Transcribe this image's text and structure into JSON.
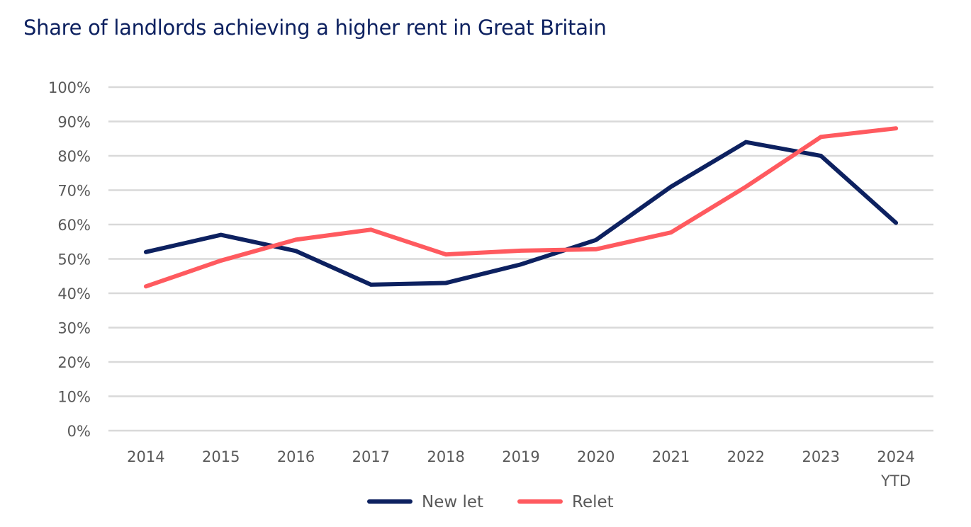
{
  "chart_data": {
    "type": "line",
    "title": "Share of landlords achieving a higher rent in Great Britain",
    "xlabel": "",
    "ylabel": "",
    "categories": [
      "2014",
      "2015",
      "2016",
      "2017",
      "2018",
      "2019",
      "2020",
      "2021",
      "2022",
      "2023",
      "2024 YTD"
    ],
    "category_lines": [
      [
        "2014"
      ],
      [
        "2015"
      ],
      [
        "2016"
      ],
      [
        "2017"
      ],
      [
        "2018"
      ],
      [
        "2019"
      ],
      [
        "2020"
      ],
      [
        "2021"
      ],
      [
        "2022"
      ],
      [
        "2023"
      ],
      [
        "2024",
        "YTD"
      ]
    ],
    "ylim": [
      0,
      100
    ],
    "yticks": [
      0,
      10,
      20,
      30,
      40,
      50,
      60,
      70,
      80,
      90,
      100
    ],
    "ytick_labels": [
      "0%",
      "10%",
      "20%",
      "30%",
      "40%",
      "50%",
      "60%",
      "70%",
      "80%",
      "90%",
      "100%"
    ],
    "grid": true,
    "legend_position": "bottom",
    "series": [
      {
        "name": "New let",
        "color": "#0d2160",
        "values": [
          52,
          57,
          52.3,
          42.5,
          43,
          48.4,
          55.5,
          71,
          84,
          80,
          60.5
        ]
      },
      {
        "name": "Relet",
        "color": "#ff5a5f",
        "values": [
          42,
          49.5,
          55.6,
          58.5,
          51.3,
          52.4,
          52.8,
          57.7,
          71,
          85.5,
          88
        ]
      }
    ]
  }
}
